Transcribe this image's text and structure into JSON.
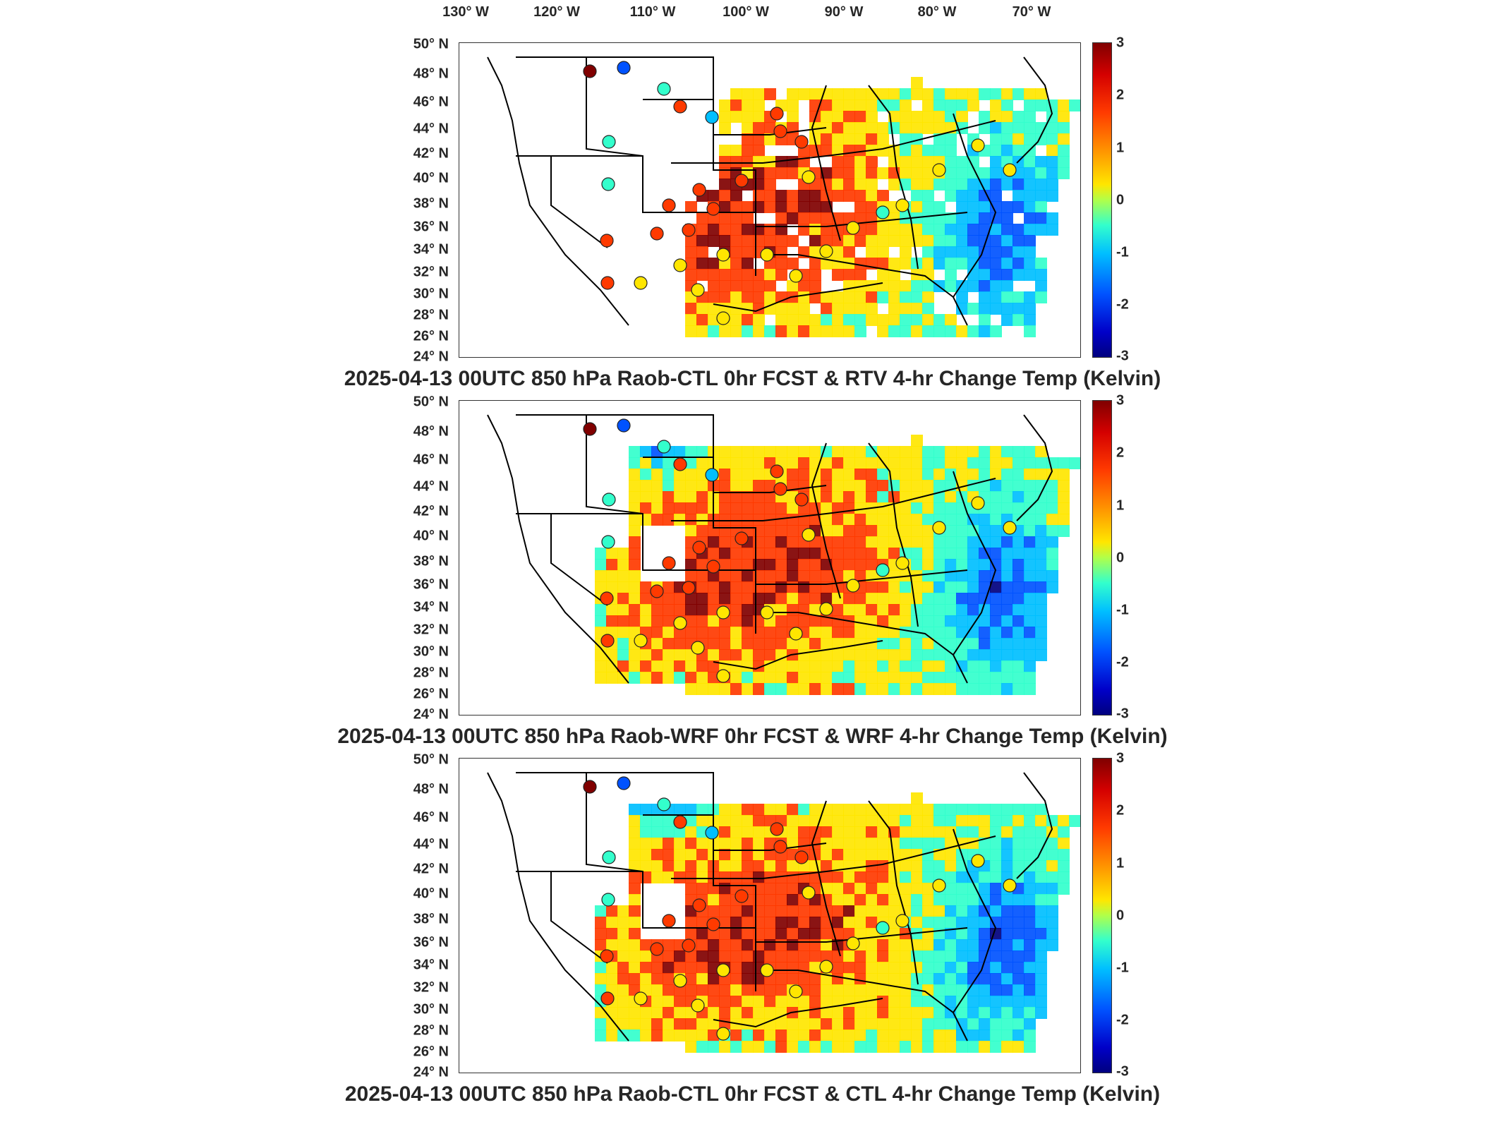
{
  "longitude_labels": [
    "130° W",
    "120° W",
    "110° W",
    "100° W",
    "90° W",
    "80° W",
    "70° W"
  ],
  "latitude_labels": [
    "50° N",
    "48° N",
    "46° N",
    "44° N",
    "42° N",
    "40° N",
    "38° N",
    "36° N",
    "34° N",
    "32° N",
    "30° N",
    "28° N",
    "26° N",
    "24° N"
  ],
  "colorbar_ticks": [
    "3",
    "2",
    "1",
    "0",
    "-1",
    "-2",
    "-3"
  ],
  "colorbar_colors": {
    "max": "#800000",
    "high": "#ff3a00",
    "mid_high": "#ffe600",
    "zero": "#33ffcc",
    "mid_low": "#00bfff",
    "low": "#0052ff",
    "min": "#00007f"
  },
  "panels": [
    {
      "title": "2025-04-13 00UTC 850 hPa Raob-CTL 0hr FCST & RTV 4-hr Change Temp (Kelvin)",
      "field": "rtv"
    },
    {
      "title": "2025-04-13 00UTC 850 hPa Raob-WRF 0hr FCST & WRF 4-hr Change Temp (Kelvin)",
      "field": "wrf"
    },
    {
      "title": "2025-04-13 00UTC 850 hPa Raob-CTL 0hr FCST & CTL 4-hr Change Temp (Kelvin)",
      "field": "ctl"
    }
  ]
}
